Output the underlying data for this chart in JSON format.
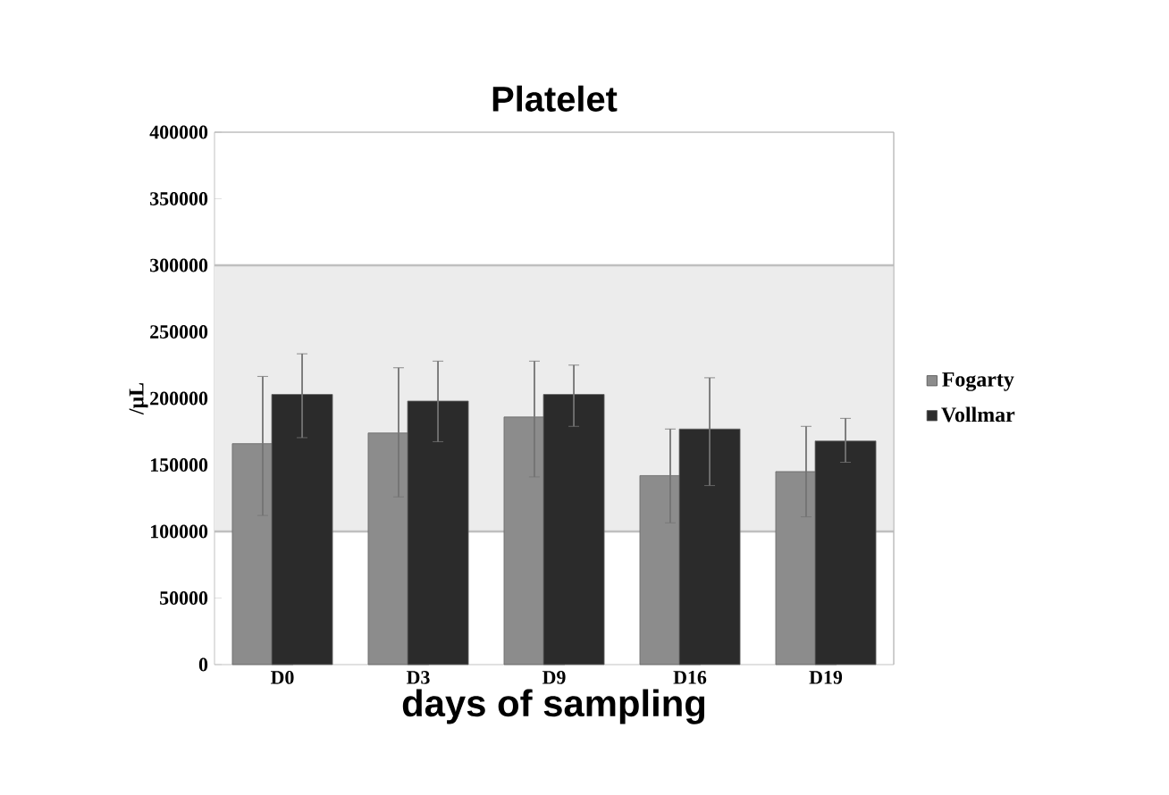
{
  "chart_data": {
    "type": "bar",
    "title": "Platelet",
    "xlabel": "days of sampling",
    "ylabel": "/μL",
    "categories": [
      "D0",
      "D3",
      "D9",
      "D16",
      "D19"
    ],
    "series": [
      {
        "name": "Fogarty",
        "color": "#8c8c8c",
        "values": [
          166000,
          174000,
          186000,
          142000,
          145000
        ],
        "errors": [
          [
            112000,
            216500
          ],
          [
            126000,
            223000
          ],
          [
            141000,
            228000
          ],
          [
            106500,
            177000
          ],
          [
            111000,
            179000
          ]
        ]
      },
      {
        "name": "Vollmar",
        "color": "#2b2b2b",
        "values": [
          203000,
          198000,
          203000,
          177000,
          168000
        ],
        "errors": [
          [
            170500,
            233500
          ],
          [
            167500,
            228000
          ],
          [
            179000,
            225000
          ],
          [
            134500,
            215500
          ],
          [
            152000,
            185000
          ]
        ]
      }
    ],
    "ylim": [
      0,
      400000
    ],
    "yticks": [
      0,
      50000,
      100000,
      150000,
      200000,
      250000,
      300000,
      350000,
      400000
    ],
    "bands": [
      {
        "axis": "y",
        "from": 100000,
        "to": 300000,
        "color": "#ececec"
      }
    ],
    "legend": "right"
  }
}
